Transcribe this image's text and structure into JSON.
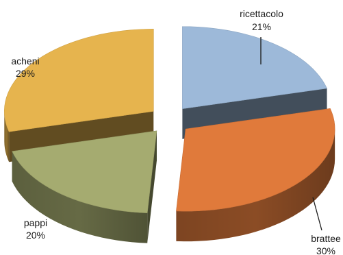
{
  "chart_data": {
    "type": "pie",
    "variant": "exploded-3d",
    "slices": [
      {
        "label": "ricettacolo",
        "value": 21,
        "value_label": "21%",
        "color": "#9db9d9"
      },
      {
        "label": "brattee",
        "value": 30,
        "value_label": "30%",
        "color": "#e07a3b"
      },
      {
        "label": "pappi",
        "value": 20,
        "value_label": "20%",
        "color": "#a5ab70"
      },
      {
        "label": "acheni",
        "value": 29,
        "value_label": "29%",
        "color": "#e6b44e"
      }
    ]
  }
}
